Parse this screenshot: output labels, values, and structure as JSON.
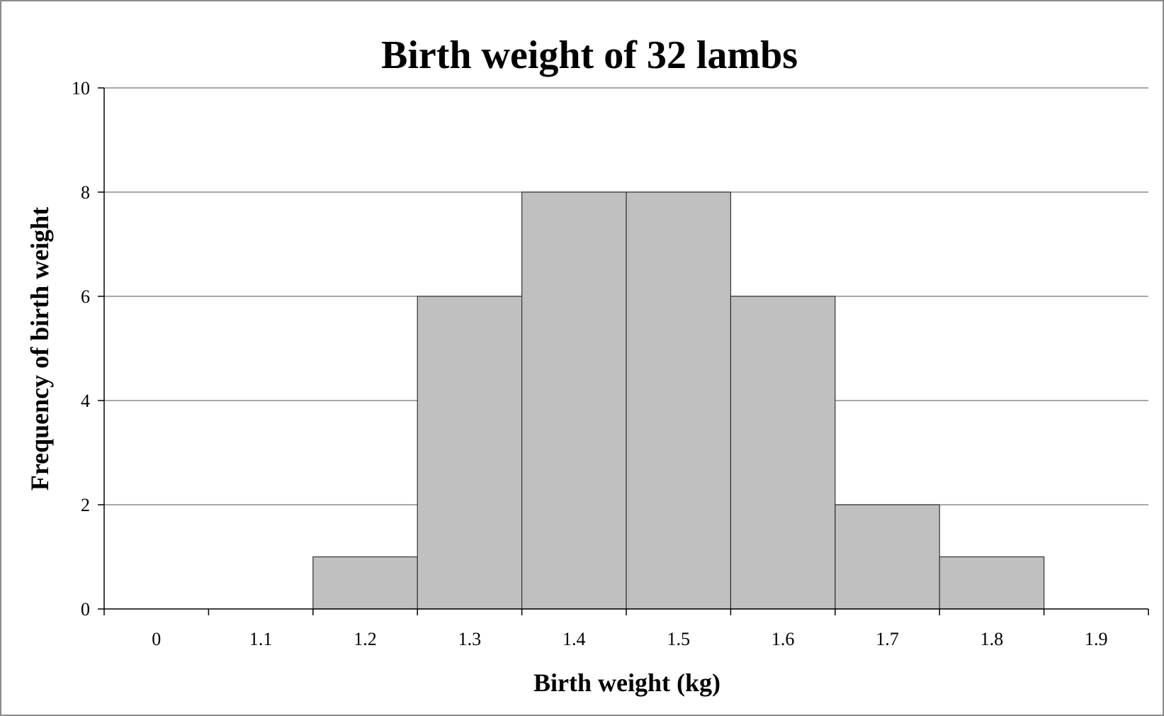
{
  "chart_data": {
    "type": "bar",
    "title": "Birth weight of 32 lambs",
    "xlabel": "Birth weight (kg)",
    "ylabel": "Frequency of birth weight",
    "categories": [
      "0",
      "1.1",
      "1.2",
      "1.3",
      "1.4",
      "1.5",
      "1.6",
      "1.7",
      "1.8",
      "1.9"
    ],
    "values": [
      0,
      0,
      1,
      6,
      8,
      8,
      6,
      2,
      1,
      0
    ],
    "ylim": [
      0,
      10
    ],
    "yticks": [
      0,
      2,
      4,
      6,
      8,
      10
    ],
    "grid": true,
    "legend": "none",
    "bar_color": "#c0c0c0",
    "bar_border_color": "#333333",
    "gridline_color": "#8c8c8c"
  }
}
